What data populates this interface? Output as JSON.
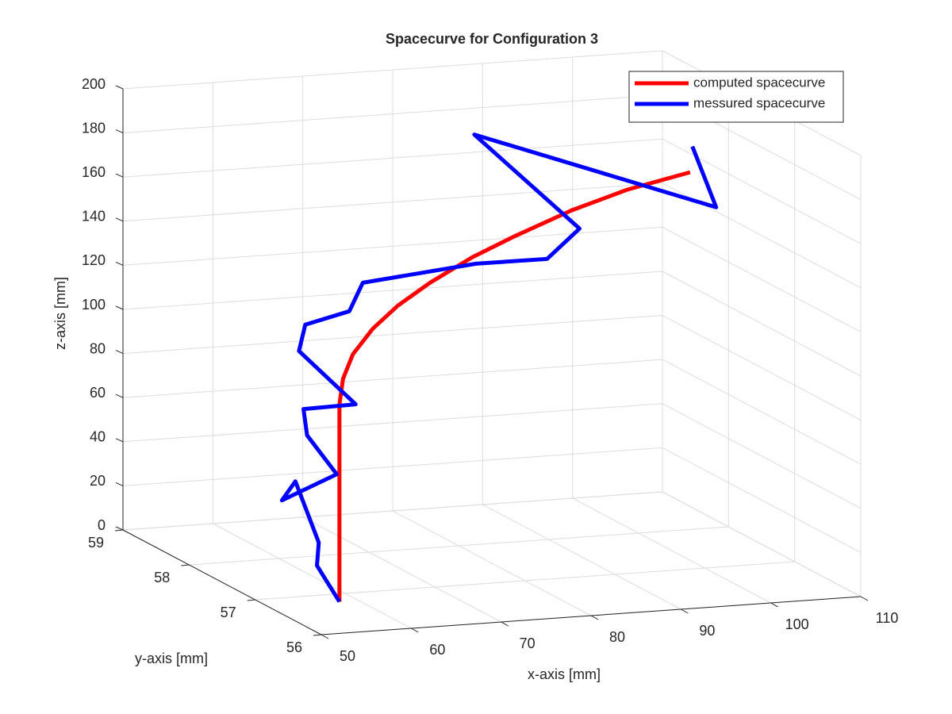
{
  "chart_data": {
    "type": "line3d",
    "title": "Spacecurve for Configuration 3",
    "xlabel": "x-axis [mm]",
    "ylabel": "y-axis [mm]",
    "zlabel": "z-axis [mm]",
    "xlim": [
      50,
      110
    ],
    "xticks": [
      50,
      60,
      70,
      80,
      90,
      100,
      110
    ],
    "ylim": [
      56,
      59
    ],
    "yticks": [
      56,
      57,
      58,
      59
    ],
    "zlim": [
      0,
      200
    ],
    "zticks": [
      0,
      20,
      40,
      60,
      80,
      100,
      120,
      140,
      160,
      180,
      200
    ],
    "grid": true,
    "legend": "northeast",
    "series": [
      {
        "name": "computed spacecurve",
        "color": "#ff0000",
        "x": [
          57.9,
          57.9,
          58.3,
          59.4,
          61.6,
          64.4,
          68.0,
          72.7,
          77.5,
          83.7,
          89.9,
          96.9
        ],
        "y": [
          56.8,
          56.8,
          56.8,
          56.8,
          56.8,
          56.8,
          56.8,
          56.8,
          56.8,
          56.8,
          56.8,
          56.8
        ],
        "z": [
          0,
          89.5,
          101.0,
          111.8,
          122.7,
          132.4,
          141.8,
          152.0,
          160.3,
          170.0,
          177.6,
          183.5
        ]
      },
      {
        "name": "messured spacecurve",
        "color": "#0000ff",
        "x": [
          57.9,
          55.4,
          55.6,
          53.0,
          51.5,
          57.6,
          54.3,
          53.9,
          59.7,
          53.4,
          54.1,
          59.0,
          60.5,
          73.1,
          81.0,
          84.6,
          85.4,
          99.8,
          102.3
        ],
        "y": [
          56.8,
          56.8,
          56.8,
          56.8,
          56.8,
          56.8,
          56.8,
          56.8,
          56.8,
          56.8,
          56.8,
          56.8,
          56.8,
          56.8,
          56.8,
          56.8,
          58.5,
          56.8,
          57.5
        ],
        "z": [
          0,
          17.1,
          27.5,
          56.0,
          47.8,
          57.9,
          76.5,
          88.5,
          89.0,
          115.0,
          126.7,
          131.4,
          143.9,
          148.9,
          148.8,
          161.5,
          177.0,
          166.8,
          182.6
        ]
      }
    ]
  }
}
